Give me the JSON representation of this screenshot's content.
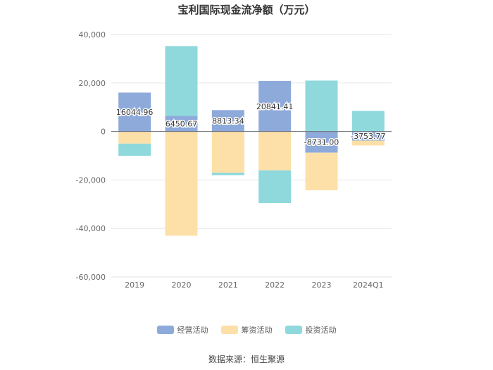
{
  "chart_data": {
    "type": "bar",
    "stacked": true,
    "title": "宝利国际现金流净额（万元）",
    "categories": [
      "2019",
      "2020",
      "2021",
      "2022",
      "2023",
      "2024Q1"
    ],
    "series": [
      {
        "name": "经营活动",
        "color": "#8eaadb",
        "values": [
          16044.96,
          6450.67,
          8813.34,
          20841.41,
          -8731.0,
          -3753.77
        ]
      },
      {
        "name": "筹资活动",
        "color": "#fde0a8",
        "values": [
          -5000,
          -43000,
          -17000,
          -16000,
          -15500,
          -2000
        ]
      },
      {
        "name": "投资活动",
        "color": "#8fd8dc",
        "values": [
          -5000,
          28800,
          -1000,
          -13500,
          21000,
          8500
        ]
      }
    ],
    "data_labels": [
      "16044.96",
      "6450.67",
      "8813.34",
      "20841.41",
      "-8731.00",
      "-3753.77"
    ],
    "yticks": [
      "40,000",
      "20,000",
      "0",
      "-20,000",
      "-40,000",
      "-60,000"
    ],
    "ytick_values": [
      40000,
      20000,
      0,
      -20000,
      -40000,
      -60000
    ],
    "ylim": [
      -60000,
      40000
    ],
    "grid": true,
    "legend_position": "bottom"
  },
  "source": "数据来源：恒生聚源"
}
